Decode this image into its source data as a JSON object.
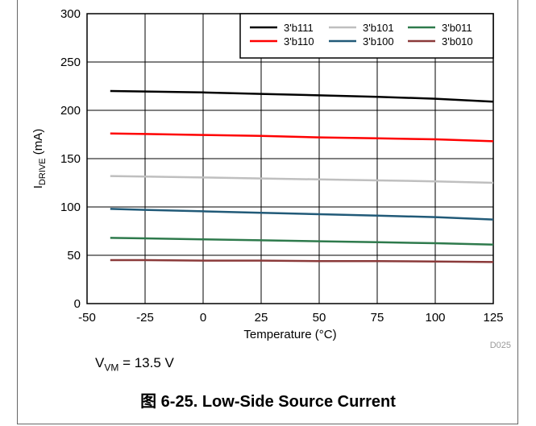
{
  "chart_data": {
    "type": "line",
    "xlabel_prefix": "Temperature (",
    "xlabel_unit": "°C",
    "xlabel_suffix": ")",
    "ylabel_main": "I",
    "ylabel_sub": "DRIVE",
    "ylabel_unit": " (mA)",
    "xlim": [
      -50,
      125
    ],
    "ylim": [
      0,
      300
    ],
    "xticks": [
      -50,
      -25,
      0,
      25,
      50,
      75,
      100,
      125
    ],
    "yticks": [
      0,
      50,
      100,
      150,
      200,
      250,
      300
    ],
    "grid": true,
    "legend_position": "top-right",
    "series": [
      {
        "name": "3'b111",
        "color": "#000000",
        "x": [
          -40,
          -25,
          0,
          25,
          50,
          75,
          100,
          125
        ],
        "values": [
          220,
          219.5,
          218.5,
          217,
          215.5,
          214,
          212,
          209
        ]
      },
      {
        "name": "3'b110",
        "color": "#ff0000",
        "x": [
          -40,
          -25,
          0,
          25,
          50,
          75,
          100,
          125
        ],
        "values": [
          176,
          175.5,
          174.5,
          173.5,
          172,
          171,
          170,
          168
        ]
      },
      {
        "name": "3'b101",
        "color": "#bfbfbf",
        "x": [
          -40,
          -25,
          0,
          25,
          50,
          75,
          100,
          125
        ],
        "values": [
          132,
          131.5,
          130.5,
          129.5,
          128.5,
          127.5,
          126.5,
          125
        ]
      },
      {
        "name": "3'b100",
        "color": "#215a78",
        "x": [
          -40,
          -25,
          0,
          25,
          50,
          75,
          100,
          125
        ],
        "values": [
          98,
          97,
          95.5,
          94,
          92.5,
          91,
          89.5,
          87
        ]
      },
      {
        "name": "3'b011",
        "color": "#2e7a4c",
        "x": [
          -40,
          -25,
          0,
          25,
          50,
          75,
          100,
          125
        ],
        "values": [
          68,
          67.5,
          66.5,
          65.5,
          64.5,
          63.5,
          62.5,
          61
        ]
      },
      {
        "name": "3'b010",
        "color": "#8b3a3a",
        "x": [
          -40,
          -25,
          0,
          25,
          50,
          75,
          100,
          125
        ],
        "values": [
          45,
          45,
          44.5,
          44.5,
          44,
          44,
          43.5,
          43
        ]
      }
    ],
    "legend_order": [
      "3'b111",
      "3'b101",
      "3'b011",
      "3'b110",
      "3'b100",
      "3'b010"
    ],
    "figure_code": "D025"
  },
  "condition": {
    "main": "V",
    "sub": "VM",
    "rest": " = 13.5 V"
  },
  "caption": "图 6-25. Low-Side Source Current"
}
